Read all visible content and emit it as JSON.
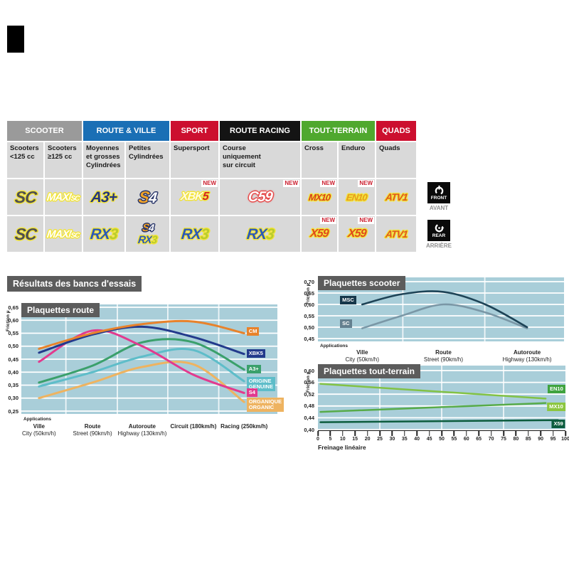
{
  "new_label": "NEW",
  "results_heading": "Résultats des bancs d'essais",
  "front_badge": {
    "line1": "FRONT",
    "line2": "AVANT"
  },
  "rear_badge": {
    "line1": "REAR",
    "line2": "ARRIÈRE"
  },
  "table": {
    "categories": [
      {
        "label": "SCOOTER",
        "color": "#9a9a9a"
      },
      {
        "label": "ROUTE & VILLE",
        "color": "#1a6fb5"
      },
      {
        "label": "SPORT",
        "color": "#cc0f2f"
      },
      {
        "label": "ROUTE RACING",
        "color": "#141414"
      },
      {
        "label": "TOUT-TERRAIN",
        "color": "#4fa82e"
      },
      {
        "label": "QUADS",
        "color": "#cc0f2f"
      }
    ],
    "subheaders": [
      "Scooters\n<125 cc",
      "Scooters\n≥125 cc",
      "Moyennes\net grosses\nCylindrées",
      "Petites\nCylindrées",
      "Supersport",
      "Course\nuniquement\nsur circuit",
      "Cross",
      "Enduro",
      "Quads"
    ],
    "front_row": {
      "sc": "SC",
      "maxisc_1": "MAXI",
      "maxisc_2": "SC",
      "a3": "A3+",
      "s4_1": "S",
      "s4_2": "4",
      "xbk5_1": "XBK",
      "xbk5_2": "5",
      "c59": "C59",
      "mx10": "MX10",
      "en10": "EN10",
      "atv1": "ATV1"
    },
    "rear_row": {
      "sc": "SC",
      "maxisc_1": "MAXI",
      "maxisc_2": "SC",
      "rx3_1": "RX",
      "rx3_2": "3",
      "s4_1": "S",
      "s4_2": "4",
      "x59": "X59",
      "atv1": "ATV1"
    }
  },
  "chart_data": [
    {
      "id": "route",
      "type": "line",
      "title": "Plaquettes route",
      "ylabel": "Friction µ",
      "xlabel": "Applications",
      "ylim": [
        0.25,
        0.65
      ],
      "grid": true,
      "yticks": [
        0.65,
        0.6,
        0.55,
        0.5,
        0.45,
        0.4,
        0.35,
        0.3,
        0.25
      ],
      "ytick_labels": [
        "0,65",
        "0,60",
        "0,55",
        "0,50",
        "0,45",
        "0,40",
        "0,35",
        "0,30",
        "0,25"
      ],
      "categories": [
        {
          "fr": "Ville",
          "en": "City",
          "speed": "(50km/h)",
          "pct": 6.9
        },
        {
          "fr": "Route",
          "en": "Street",
          "speed": "(90km/h)",
          "pct": 27.8
        },
        {
          "fr": "Autoroute",
          "en": "Highway",
          "speed": "(130km/h)",
          "pct": 47.2
        },
        {
          "fr": "Circuit",
          "en": "",
          "speed": "(180km/h)",
          "pct": 67.2
        },
        {
          "fr": "Racing",
          "en": "",
          "speed": "(250km/h)",
          "pct": 87.0
        }
      ],
      "legend_position": "right",
      "series": [
        {
          "name": "ORGANIQUE|ORGANIC",
          "color": "#eeb360",
          "values": [
            0.3,
            0.36,
            0.42,
            0.43,
            0.285
          ],
          "legend_v": 0.282,
          "legend_left_pct": 88
        },
        {
          "name": "ORIGINE|GENUINE",
          "color": "#5ebdc9",
          "values": [
            0.345,
            0.4,
            0.46,
            0.485,
            0.365
          ],
          "legend_v": 0.362,
          "legend_left_pct": 88
        },
        {
          "name": "A3+",
          "color": "#3aa06b",
          "values": [
            0.36,
            0.425,
            0.515,
            0.515,
            0.41
          ],
          "legend_v": 0.408,
          "legend_left_pct": 88
        },
        {
          "name": "S4",
          "color": "#e23a8e",
          "values": [
            0.44,
            0.56,
            0.5,
            0.39,
            0.32
          ],
          "legend_v": 0.318,
          "legend_left_pct": 88
        },
        {
          "name": "XBK5",
          "color": "#233a8c",
          "values": [
            0.475,
            0.545,
            0.575,
            0.535,
            0.47
          ],
          "legend_v": 0.468,
          "legend_left_pct": 88
        },
        {
          "name": "CM",
          "color": "#e8822b",
          "values": [
            0.49,
            0.55,
            0.585,
            0.595,
            0.55
          ],
          "legend_v": 0.553,
          "legend_left_pct": 88
        }
      ]
    },
    {
      "id": "scooter",
      "type": "line",
      "title": "Plaquettes scooter",
      "ylabel": "Friction µ",
      "xlabel": "Applications",
      "ylim": [
        0.45,
        0.7
      ],
      "grid": true,
      "yticks": [
        0.7,
        0.65,
        0.6,
        0.55,
        0.5,
        0.45
      ],
      "ytick_labels": [
        "0,70",
        "0,65",
        "0,60",
        "0,55",
        "0,50",
        "0,45"
      ],
      "categories": [
        {
          "fr": "Ville",
          "en": "City",
          "speed": "(50km/h)",
          "pct": 18
        },
        {
          "fr": "Route",
          "en": "Street",
          "speed": "(90km/h)",
          "pct": 51
        },
        {
          "fr": "Autoroute",
          "en": "Highway",
          "speed": "(130km/h)",
          "pct": 85
        }
      ],
      "legend_position": "left-inside",
      "series": [
        {
          "name": "SC",
          "color": "#7a97a6",
          "box": "#64808f",
          "x_pct": [
            18,
            34,
            51,
            68,
            85
          ],
          "values": [
            0.495,
            0.55,
            0.6,
            0.565,
            0.495
          ],
          "legend_v": 0.513,
          "legend_left_pct": 9
        },
        {
          "name": "MSC",
          "color": "#1d4356",
          "box": "#16374a",
          "x_pct": [
            18,
            34,
            51,
            68,
            85
          ],
          "values": [
            0.6,
            0.645,
            0.655,
            0.6,
            0.5
          ],
          "legend_v": 0.615,
          "legend_left_pct": 9
        }
      ]
    },
    {
      "id": "tout",
      "type": "line",
      "title": "Plaquettes tout-terrain",
      "ylabel": "Friction µ",
      "xlabel": "Freinage linéaire",
      "ylim": [
        0.4,
        0.6
      ],
      "grid": true,
      "yticks": [
        0.6,
        0.56,
        0.52,
        0.48,
        0.44,
        0.4
      ],
      "ytick_labels": [
        "0,60",
        "0,56",
        "0,52",
        "0,48",
        "0,44",
        "0,40"
      ],
      "xticks": [
        0,
        5,
        10,
        15,
        20,
        25,
        30,
        35,
        40,
        45,
        50,
        55,
        60,
        65,
        70,
        75,
        80,
        85,
        90,
        95,
        100
      ],
      "legend_position": "right-inside",
      "series": [
        {
          "name": "EN10",
          "color": "#82c245",
          "box": "#3fa33f",
          "x_pct": [
            1,
            92
          ],
          "values": [
            0.555,
            0.505
          ],
          "legend_v": 0.535,
          "legend_left_pct": 100
        },
        {
          "name": "MX10",
          "color": "#57ab49",
          "box": "#8cc63f",
          "x_pct": [
            1,
            92
          ],
          "values": [
            0.46,
            0.49
          ],
          "legend_v": 0.475,
          "legend_left_pct": 100
        },
        {
          "name": "X59",
          "color": "#0c5c3d",
          "box": "#0c5c3d",
          "x_pct": [
            1,
            97
          ],
          "values": [
            0.425,
            0.432
          ],
          "legend_v": 0.417,
          "legend_left_pct": 100
        }
      ]
    }
  ]
}
